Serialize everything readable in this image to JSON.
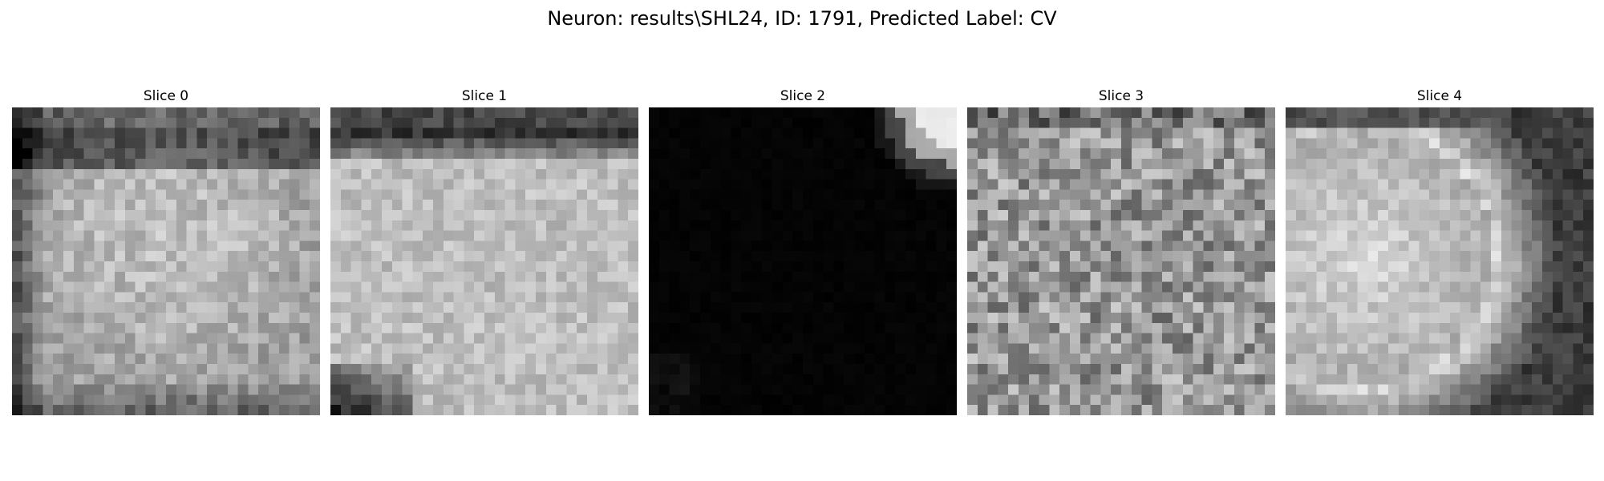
{
  "figure": {
    "title": "Neuron: results\\SHL24, ID: 1791, Predicted Label: CV",
    "colormap": "gray",
    "slices": [
      {
        "title": "Slice 0",
        "pattern": "dark-top-band-bright-center"
      },
      {
        "title": "Slice 1",
        "pattern": "dark-top-band-bright-body-dark-bottom-left"
      },
      {
        "title": "Slice 2",
        "pattern": "black-with-bright-top-right-corner"
      },
      {
        "title": "Slice 3",
        "pattern": "uniform-noisy-gray"
      },
      {
        "title": "Slice 4",
        "pattern": "bright-blob-left-dark-right-arc"
      }
    ]
  }
}
